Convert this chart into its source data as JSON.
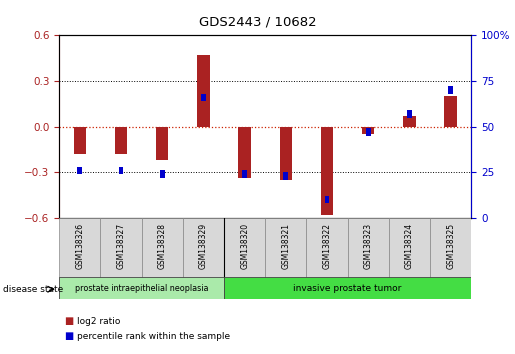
{
  "title": "GDS2443 / 10682",
  "samples": [
    "GSM138326",
    "GSM138327",
    "GSM138328",
    "GSM138329",
    "GSM138320",
    "GSM138321",
    "GSM138322",
    "GSM138323",
    "GSM138324",
    "GSM138325"
  ],
  "log2_ratio": [
    -0.18,
    -0.18,
    -0.22,
    0.47,
    -0.34,
    -0.35,
    -0.58,
    -0.05,
    0.07,
    0.2
  ],
  "percentile_rank": [
    26,
    26,
    24,
    66,
    24,
    23,
    10,
    47,
    57,
    70
  ],
  "ylim_left": [
    -0.6,
    0.6
  ],
  "ylim_right": [
    0,
    100
  ],
  "yticks_left": [
    -0.6,
    -0.3,
    0.0,
    0.3,
    0.6
  ],
  "yticks_right": [
    0,
    25,
    50,
    75,
    100
  ],
  "ytick_labels_right": [
    "0",
    "25",
    "50",
    "75",
    "100%"
  ],
  "bar_color_red": "#AA2222",
  "bar_color_blue": "#0000CC",
  "dashed_zero_color": "#CC2200",
  "disease_groups": [
    {
      "label": "prostate intraepithelial neoplasia",
      "start": 0,
      "end": 4,
      "color": "#AAEAAA"
    },
    {
      "label": "invasive prostate tumor",
      "start": 4,
      "end": 10,
      "color": "#44DD44"
    }
  ],
  "legend_items": [
    {
      "label": "log2 ratio",
      "color": "#AA2222"
    },
    {
      "label": "percentile rank within the sample",
      "color": "#0000CC"
    }
  ],
  "disease_state_label": "disease state",
  "background_color": "#ffffff"
}
